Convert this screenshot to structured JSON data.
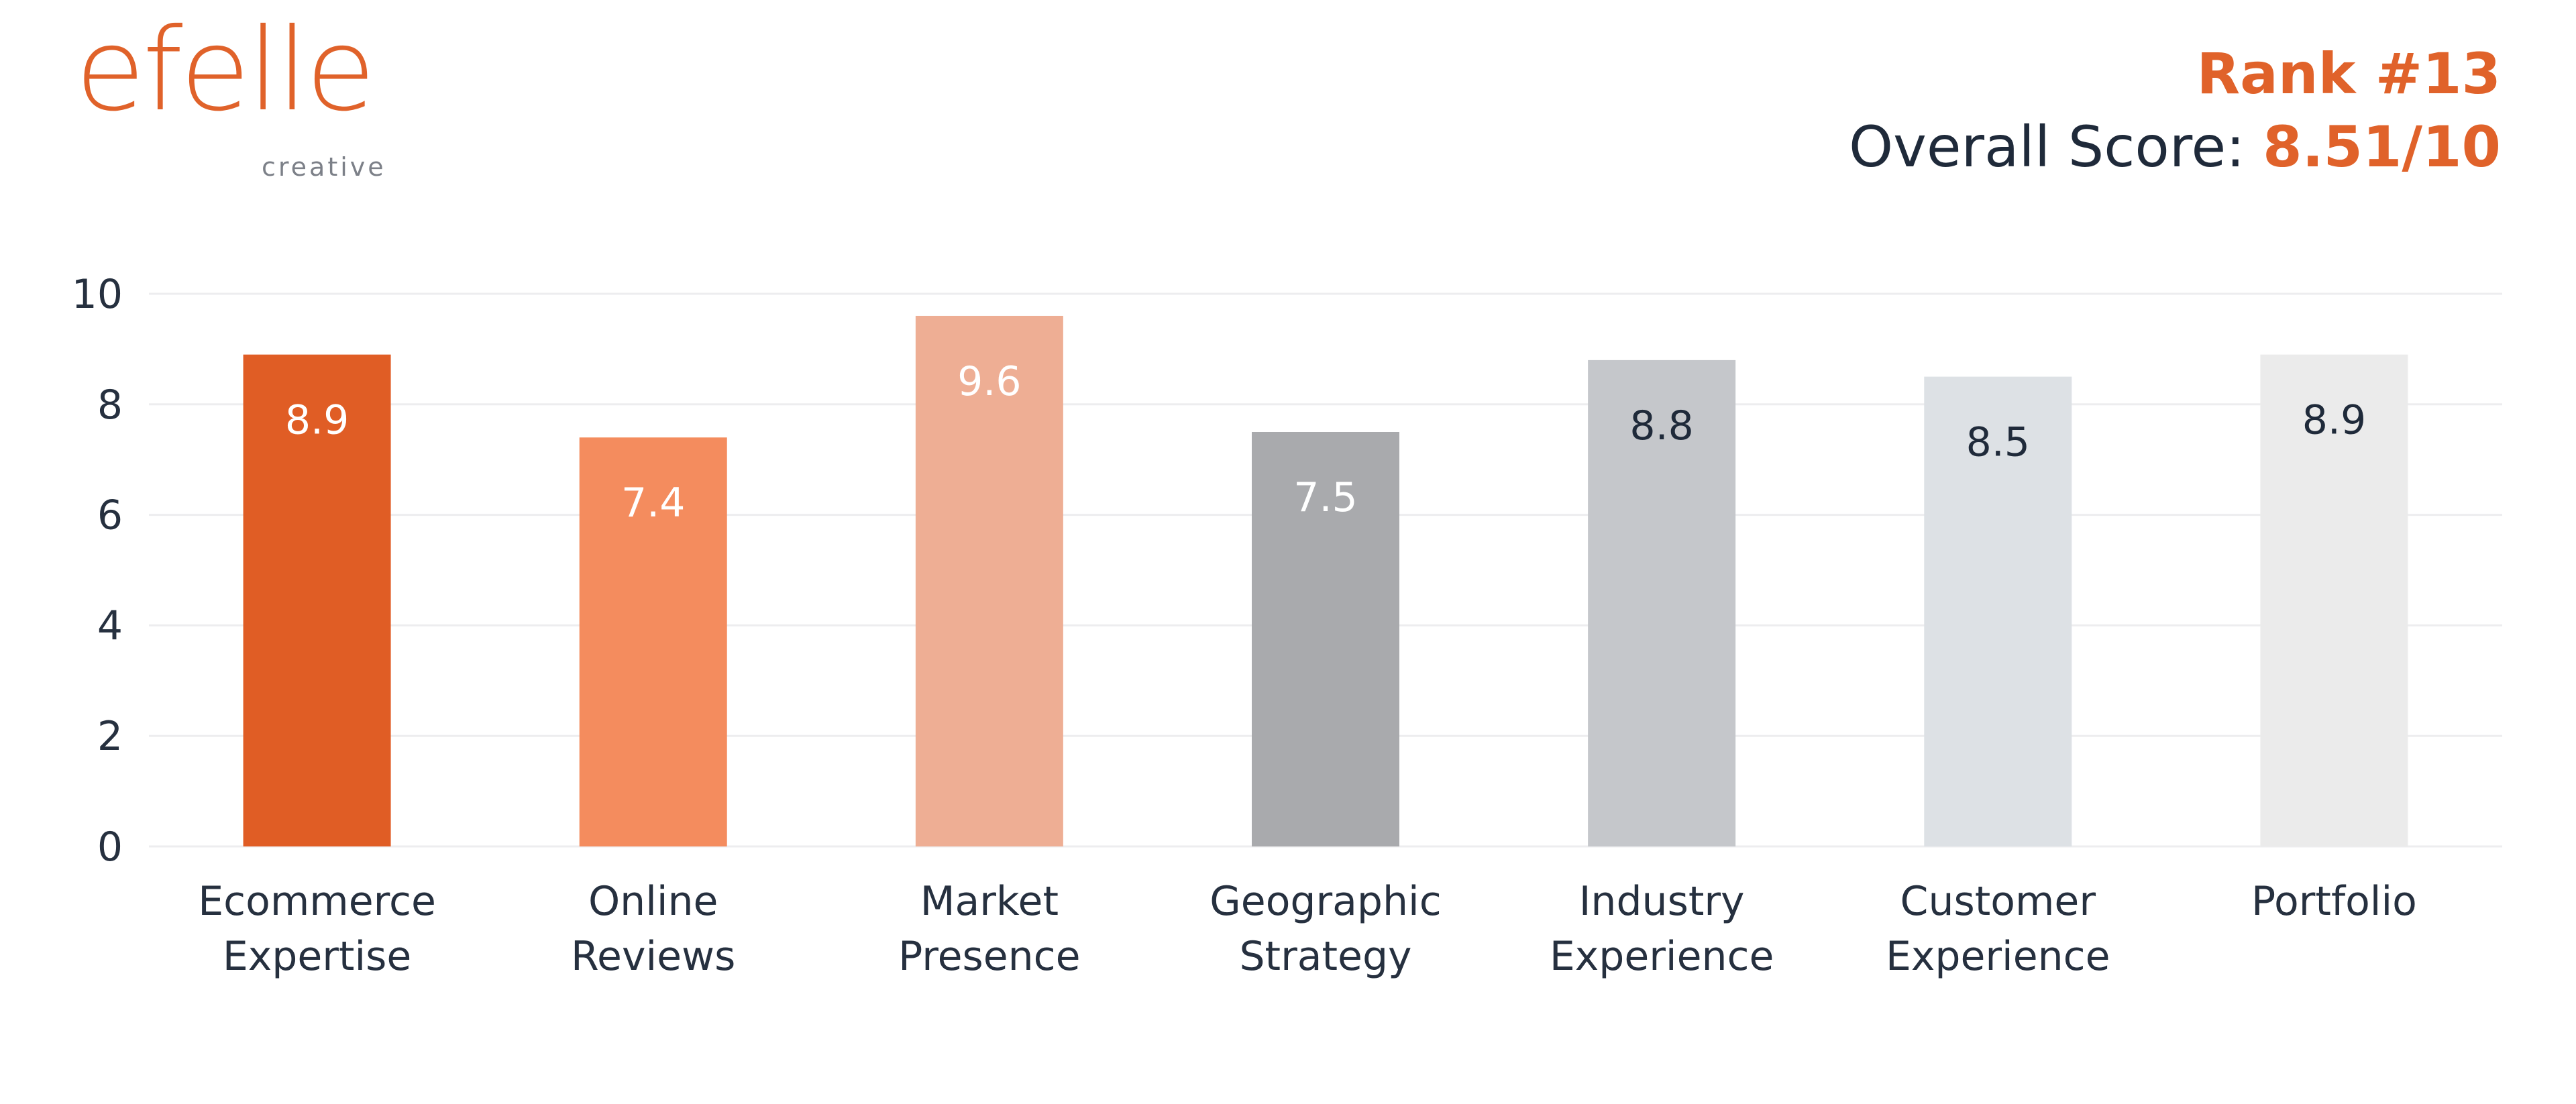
{
  "brand": {
    "logo_text": "efelle",
    "logo_subtext": "creative",
    "accent_color": "#e0622a"
  },
  "header": {
    "rank": "Rank #13",
    "overall_prefix": "Overall Score: ",
    "overall_value": "8.51/10"
  },
  "chart_data": {
    "type": "bar",
    "categories": [
      [
        "Ecommerce",
        "Expertise"
      ],
      [
        "Online",
        "Reviews"
      ],
      [
        "Market",
        "Presence"
      ],
      [
        "Geographic",
        "Strategy"
      ],
      [
        "Industry",
        "Experience"
      ],
      [
        "Customer",
        "Experience"
      ],
      [
        "Portfolio"
      ]
    ],
    "values": [
      8.9,
      7.4,
      9.6,
      7.5,
      8.8,
      8.5,
      8.9
    ],
    "value_labels": [
      "8.9",
      "7.4",
      "9.6",
      "7.5",
      "8.8",
      "8.5",
      "8.9"
    ],
    "bar_colors": [
      "#e05d25",
      "#f48c5e",
      "#eeae94",
      "#a9aaad",
      "#c5c7cb",
      "#dde1e5",
      "#ebebeb"
    ],
    "label_colors": [
      "#ffffff",
      "#ffffff",
      "#ffffff",
      "#ffffff",
      "#1f2a3a",
      "#1f2a3a",
      "#1f2a3a"
    ],
    "yticks": [
      "0",
      "2",
      "4",
      "6",
      "8",
      "10"
    ],
    "ylim": [
      0,
      10
    ],
    "grid": true,
    "title": "",
    "xlabel": "",
    "ylabel": ""
  }
}
